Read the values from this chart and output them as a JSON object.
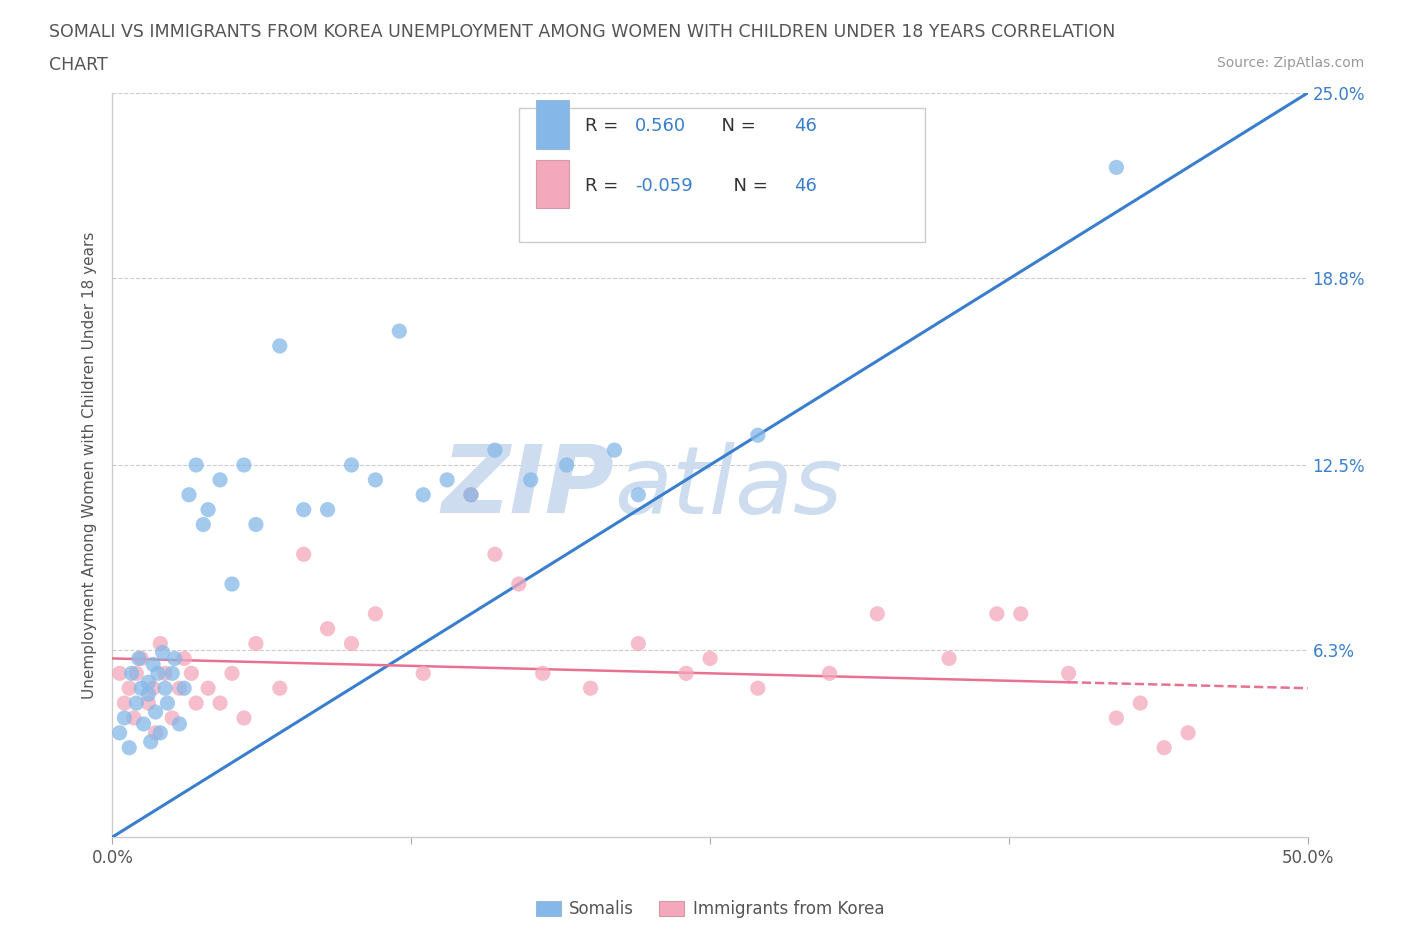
{
  "title_line1": "SOMALI VS IMMIGRANTS FROM KOREA UNEMPLOYMENT AMONG WOMEN WITH CHILDREN UNDER 18 YEARS CORRELATION",
  "title_line2": "CHART",
  "source_text": "Source: ZipAtlas.com",
  "ylabel": "Unemployment Among Women with Children Under 18 years",
  "xlim": [
    0,
    50
  ],
  "ylim": [
    0,
    25
  ],
  "background_color": "#ffffff",
  "watermark_color": "#cddcee",
  "somali_color": "#85b8e8",
  "korea_color": "#f4a8bc",
  "line_somali_color": "#3a7fce",
  "line_korea_color": "#e87090",
  "legend_R_somali": "0.560",
  "legend_N_somali": "46",
  "legend_R_korea": "-0.059",
  "legend_N_korea": "46",
  "somali_x": [
    0.3,
    0.5,
    0.7,
    0.8,
    1.0,
    1.1,
    1.2,
    1.3,
    1.5,
    1.5,
    1.6,
    1.7,
    1.8,
    1.9,
    2.0,
    2.1,
    2.2,
    2.3,
    2.5,
    2.6,
    2.8,
    3.0,
    3.2,
    3.5,
    3.8,
    4.0,
    4.5,
    5.0,
    5.5,
    6.0,
    7.0,
    8.0,
    9.0,
    10.0,
    11.0,
    12.0,
    13.0,
    14.0,
    15.0,
    16.0,
    17.5,
    19.0,
    21.0,
    22.0,
    27.0,
    42.0
  ],
  "somali_y": [
    3.5,
    4.0,
    3.0,
    5.5,
    4.5,
    6.0,
    5.0,
    3.8,
    5.2,
    4.8,
    3.2,
    5.8,
    4.2,
    5.5,
    3.5,
    6.2,
    5.0,
    4.5,
    5.5,
    6.0,
    3.8,
    5.0,
    11.5,
    12.5,
    10.5,
    11.0,
    12.0,
    8.5,
    12.5,
    10.5,
    16.5,
    11.0,
    11.0,
    12.5,
    12.0,
    17.0,
    11.5,
    12.0,
    11.5,
    13.0,
    12.0,
    12.5,
    13.0,
    11.5,
    13.5,
    22.5
  ],
  "korea_x": [
    0.3,
    0.5,
    0.7,
    0.9,
    1.0,
    1.2,
    1.5,
    1.7,
    1.8,
    2.0,
    2.2,
    2.5,
    2.8,
    3.0,
    3.3,
    3.5,
    4.0,
    4.5,
    5.0,
    5.5,
    6.0,
    7.0,
    8.0,
    9.0,
    10.0,
    11.0,
    13.0,
    15.0,
    16.0,
    17.0,
    18.0,
    20.0,
    22.0,
    24.0,
    25.0,
    27.0,
    30.0,
    32.0,
    35.0,
    37.0,
    38.0,
    40.0,
    42.0,
    43.0,
    44.0,
    45.0
  ],
  "korea_y": [
    5.5,
    4.5,
    5.0,
    4.0,
    5.5,
    6.0,
    4.5,
    5.0,
    3.5,
    6.5,
    5.5,
    4.0,
    5.0,
    6.0,
    5.5,
    4.5,
    5.0,
    4.5,
    5.5,
    4.0,
    6.5,
    5.0,
    9.5,
    7.0,
    6.5,
    7.5,
    5.5,
    11.5,
    9.5,
    8.5,
    5.5,
    5.0,
    6.5,
    5.5,
    6.0,
    5.0,
    5.5,
    7.5,
    6.0,
    7.5,
    7.5,
    5.5,
    4.0,
    4.5,
    3.0,
    3.5
  ]
}
